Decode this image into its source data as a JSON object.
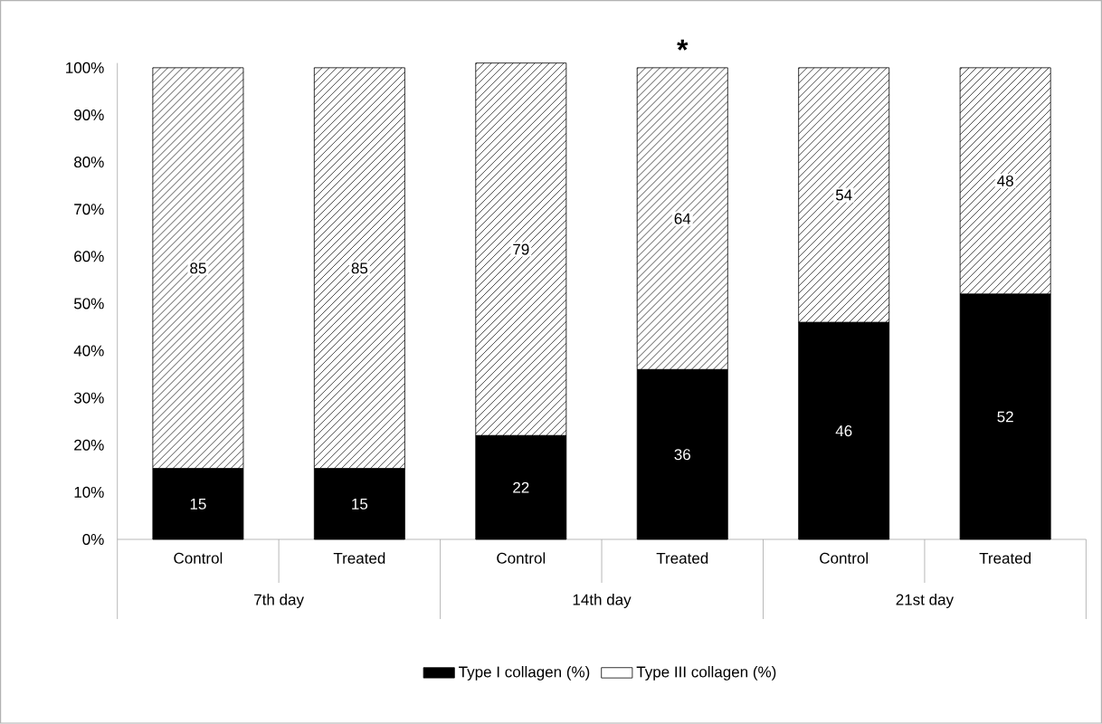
{
  "chart_data": {
    "type": "bar",
    "stacked": true,
    "categories": [
      "Control",
      "Treated",
      "Control",
      "Treated",
      "Control",
      "Treated"
    ],
    "series": [
      {
        "name": "Type I collagen (%)",
        "color": "#000000",
        "values": [
          15,
          15,
          22,
          36,
          46,
          52
        ]
      },
      {
        "name": "Type III collagen (%)",
        "color": "#000000",
        "values": [
          85,
          85,
          79,
          64,
          54,
          48
        ]
      }
    ],
    "ylim": [
      0,
      101
    ],
    "yticks": [
      {
        "value": 0,
        "label": "0%"
      },
      {
        "value": 10,
        "label": "10%"
      },
      {
        "value": 20,
        "label": "20%"
      },
      {
        "value": 30,
        "label": "30%"
      },
      {
        "value": 40,
        "label": "40%"
      },
      {
        "value": 50,
        "label": "50%"
      },
      {
        "value": 60,
        "label": "60%"
      },
      {
        "value": 70,
        "label": "70%"
      },
      {
        "value": 80,
        "label": "80%"
      },
      {
        "value": 90,
        "label": "90%"
      },
      {
        "value": 100,
        "label": "100%"
      }
    ],
    "data_labels": true,
    "grid": false,
    "legend": "bottom",
    "annotations": [
      "7th day",
      "14th day",
      "21st day",
      {
        "text": "*",
        "y": 100
      }
    ]
  }
}
